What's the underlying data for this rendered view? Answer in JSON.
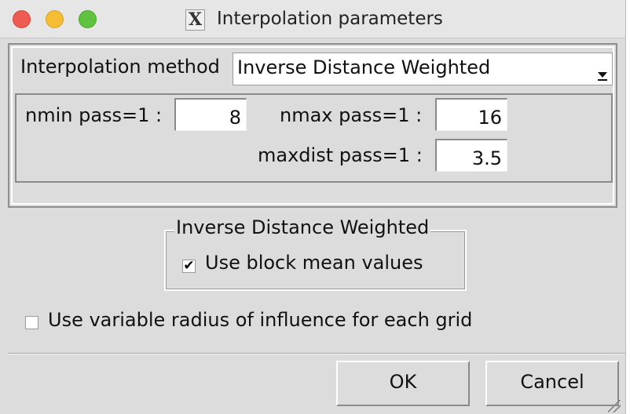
{
  "window": {
    "title": "Interpolation parameters",
    "app_icon": "x11-logo",
    "app_icon_glyph": "X"
  },
  "method": {
    "label": "Interpolation method",
    "selected": "Inverse Distance Weighted"
  },
  "params": {
    "nmin_label": "nmin pass=1 :",
    "nmin_value": "8",
    "nmax_label": "nmax pass=1 :",
    "nmax_value": "16",
    "maxdist_label": "maxdist pass=1 :",
    "maxdist_value": "3.5"
  },
  "idw_group": {
    "title": "Inverse Distance Weighted",
    "block_mean_label": "Use block mean values",
    "block_mean_checked": true,
    "check_glyph": "✔"
  },
  "variable_radius": {
    "label": "Use variable radius of influence for each grid",
    "checked": false
  },
  "buttons": {
    "ok": "OK",
    "cancel": "Cancel"
  },
  "colors": {
    "window_bg": "#dcdcdc",
    "close": "#ee5b50",
    "minimize": "#f4bd34",
    "maximize": "#5fc33f"
  }
}
